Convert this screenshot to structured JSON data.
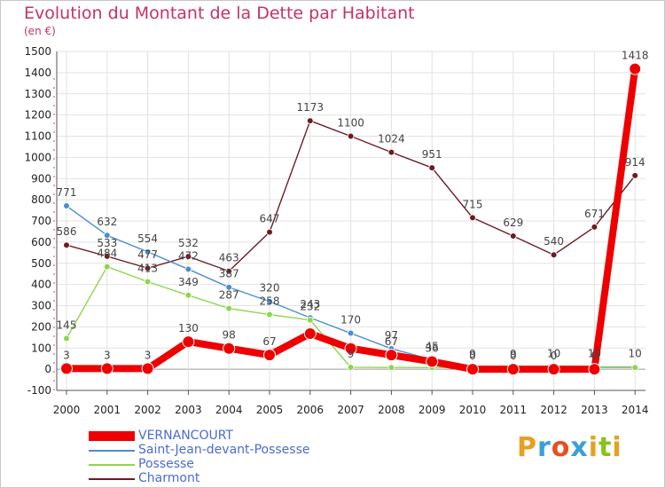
{
  "title": "Evolution du Montant de la Dette par Habitant",
  "subtitle": "(en €)",
  "logo": {
    "text": "Proxiti",
    "colors": [
      "#e8a020",
      "#3aa0d8",
      "#e85020",
      "#3aa0d8",
      "#e8a020",
      "#8ac020",
      "#e8a020"
    ]
  },
  "chart_data": {
    "type": "line",
    "x": [
      "2000",
      "2001",
      "2002",
      "2003",
      "2004",
      "2005",
      "2006",
      "2007",
      "2008",
      "2009",
      "2010",
      "2011",
      "2012",
      "2013",
      "2014"
    ],
    "yticks": [
      "-100",
      "0",
      "100",
      "200",
      "300",
      "400",
      "500",
      "600",
      "700",
      "800",
      "900",
      "1000",
      "1100",
      "1200",
      "1300",
      "1400",
      "1500"
    ],
    "ylim": [
      -100,
      1500
    ],
    "grid": true,
    "legend_position": "bottom-left",
    "series": [
      {
        "name": "Charmont",
        "color": "#6e1a22",
        "values": [
          586,
          533,
          477,
          532,
          463,
          647,
          1173,
          1100,
          1024,
          951,
          715,
          629,
          540,
          671,
          914
        ],
        "labels": [
          "586",
          "533",
          "477",
          "532",
          "463",
          "647",
          "1173",
          "1100",
          "1024",
          "951",
          "715",
          "629",
          "540",
          "671",
          "914"
        ]
      },
      {
        "name": "Saint-Jean-devant-Possesse",
        "color": "#4a8ed0",
        "values": [
          771,
          632,
          554,
          472,
          387,
          320,
          243,
          170,
          97,
          45,
          9,
          9,
          10,
          10,
          10
        ],
        "labels": [
          "771",
          "632",
          "554",
          "472",
          "387",
          "320",
          "243",
          "170",
          "97",
          "45",
          "9",
          "9",
          "10",
          "10",
          "10"
        ]
      },
      {
        "name": "Possesse",
        "color": "#8ed64a",
        "values": [
          145,
          484,
          413,
          349,
          287,
          258,
          232,
          9,
          8,
          8,
          8,
          8,
          8,
          8,
          8
        ],
        "labels": [
          "145",
          "484",
          "413",
          "349",
          "287",
          "258",
          "232",
          "9",
          "",
          "",
          "",
          "",
          "",
          "",
          ""
        ]
      },
      {
        "name": "VERNANCOURT",
        "color": "#ee0000",
        "values": [
          3,
          3,
          3,
          130,
          98,
          67,
          168,
          98,
          67,
          36,
          0,
          0,
          0,
          0,
          1418
        ],
        "labels": [
          "3",
          "3",
          "3",
          "130",
          "98",
          "67",
          "",
          "",
          "67",
          "36",
          "0",
          "0",
          "0",
          "0",
          "1418"
        ]
      }
    ],
    "legend_order": [
      "VERNANCOURT",
      "Saint-Jean-devant-Possesse",
      "Possesse",
      "Charmont"
    ]
  }
}
